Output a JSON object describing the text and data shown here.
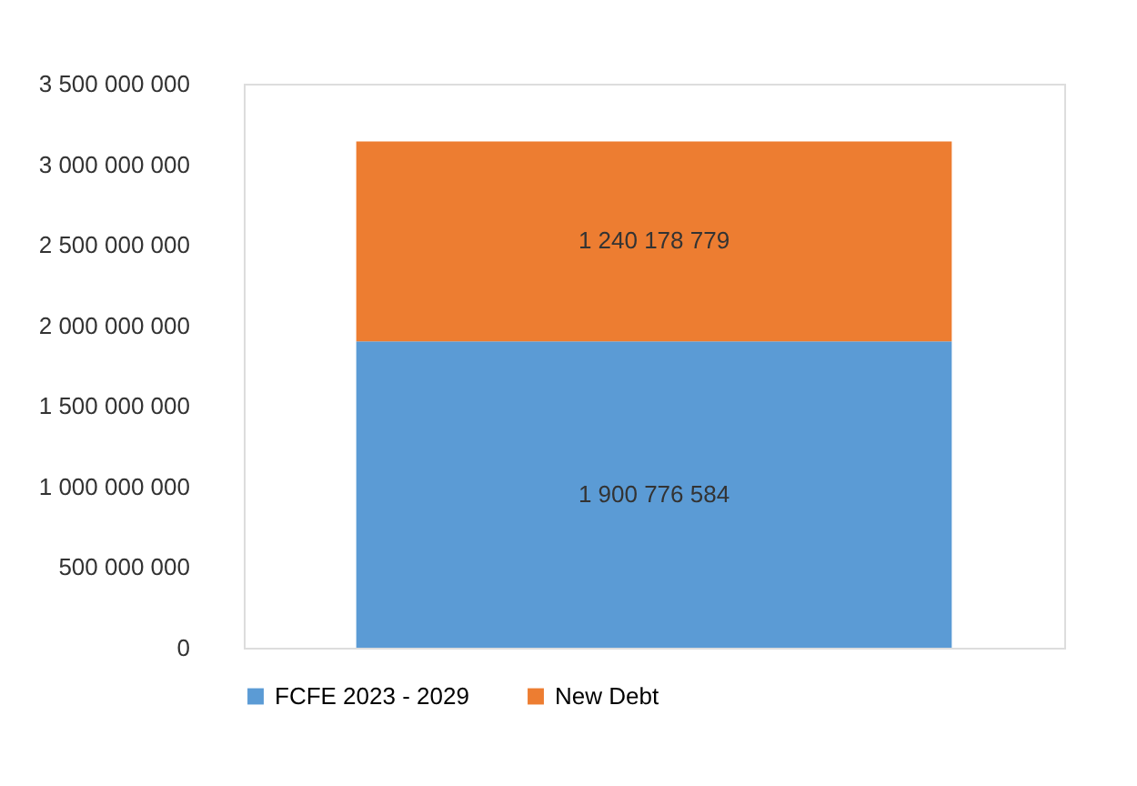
{
  "chart_data": {
    "type": "bar",
    "stacked": true,
    "categories": [
      null
    ],
    "series": [
      {
        "name": "FCFE 2023 - 2029",
        "color": "#5b9bd5",
        "values": [
          1900776584
        ],
        "value_labels": [
          "1 900 776 584"
        ]
      },
      {
        "name": "New Debt",
        "color": "#ed7d31",
        "values": [
          1240178779
        ],
        "value_labels": [
          "1 240 178 779"
        ]
      }
    ],
    "ylim": [
      0,
      3500000000
    ],
    "yticks": [
      {
        "value": 0,
        "label": "0"
      },
      {
        "value": 500000000,
        "label": "500 000 000"
      },
      {
        "value": 1000000000,
        "label": "1 000 000 000"
      },
      {
        "value": 1500000000,
        "label": "1 500 000 000"
      },
      {
        "value": 2000000000,
        "label": "2 000 000 000"
      },
      {
        "value": 2500000000,
        "label": "2 500 000 000"
      },
      {
        "value": 3000000000,
        "label": "3 000 000 000"
      },
      {
        "value": 3500000000,
        "label": "3 500 000 000"
      }
    ],
    "grid": false,
    "legend": "bottom"
  }
}
